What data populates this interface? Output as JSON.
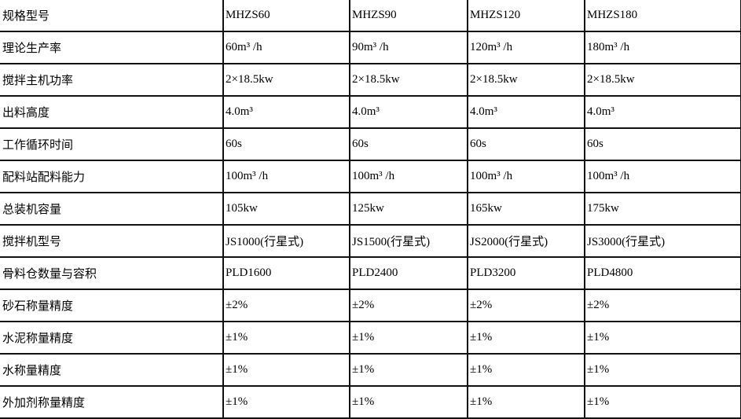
{
  "rows": [
    {
      "label": "规格型号",
      "values": [
        "MHZS60",
        "MHZS90",
        "MHZS120",
        "MHZS180"
      ]
    },
    {
      "label": "理论生产率",
      "values": [
        "60m³ /h",
        "90m³ /h",
        "120m³ /h",
        "180m³ /h"
      ]
    },
    {
      "label": "搅拌主机功率",
      "values": [
        "2×18.5kw",
        "2×18.5kw",
        "2×18.5kw",
        "2×18.5kw"
      ]
    },
    {
      "label": "出料高度",
      "values": [
        "4.0m³",
        "4.0m³",
        "4.0m³",
        "4.0m³"
      ]
    },
    {
      "label": "工作循环时间",
      "values": [
        "60s",
        "60s",
        "60s",
        "60s"
      ]
    },
    {
      "label": "配料站配料能力",
      "values": [
        "100m³ /h",
        "100m³ /h",
        "100m³ /h",
        "100m³ /h"
      ]
    },
    {
      "label": "总装机容量",
      "values": [
        "105kw",
        "125kw",
        "165kw",
        "175kw"
      ]
    },
    {
      "label": "搅拌机型号",
      "values": [
        "JS1000(行星式)",
        "JS1500(行星式)",
        "JS2000(行星式)",
        "JS3000(行星式)"
      ]
    },
    {
      "label": "骨料仓数量与容积",
      "values": [
        "PLD1600",
        "PLD2400",
        "PLD3200",
        "PLD4800"
      ]
    },
    {
      "label": "砂石称量精度",
      "values": [
        "±2%",
        "±2%",
        "±2%",
        "±2%"
      ]
    },
    {
      "label": "水泥称量精度",
      "values": [
        "±1%",
        "±1%",
        "±1%",
        "±1%"
      ]
    },
    {
      "label": "水称量精度",
      "values": [
        "±1%",
        "±1%",
        "±1%",
        "±1%"
      ]
    },
    {
      "label": "外加剂称量精度",
      "values": [
        "±1%",
        "±1%",
        "±1%",
        "±1%"
      ]
    }
  ]
}
